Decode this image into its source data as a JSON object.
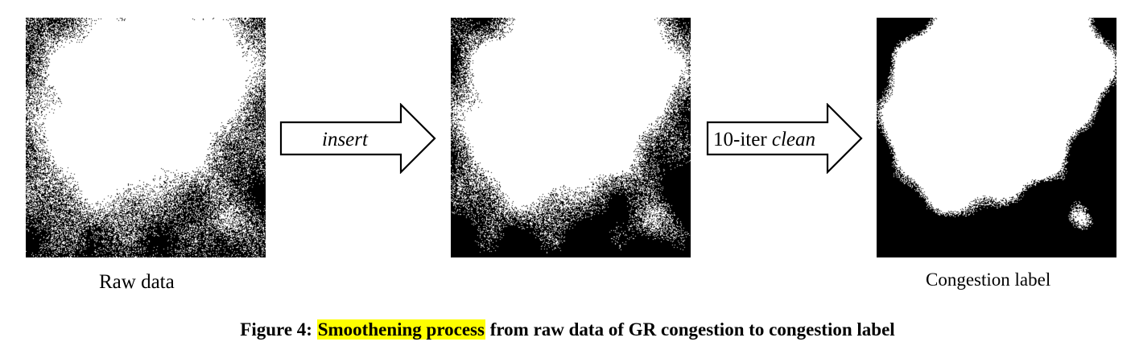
{
  "panels": {
    "raw": {
      "caption": "Raw data"
    },
    "smoothed": {
      "caption": ""
    },
    "label": {
      "caption": "Congestion label"
    }
  },
  "arrows": {
    "insert": {
      "text": "insert"
    },
    "clean": {
      "prefix": "10-iter ",
      "italic": "clean"
    }
  },
  "figure_caption": {
    "number": "Figure 4:",
    "highlight": "Smoothening process",
    "rest": "from raw data of GR congestion to congestion label",
    "highlight_color": "#ffff00"
  }
}
